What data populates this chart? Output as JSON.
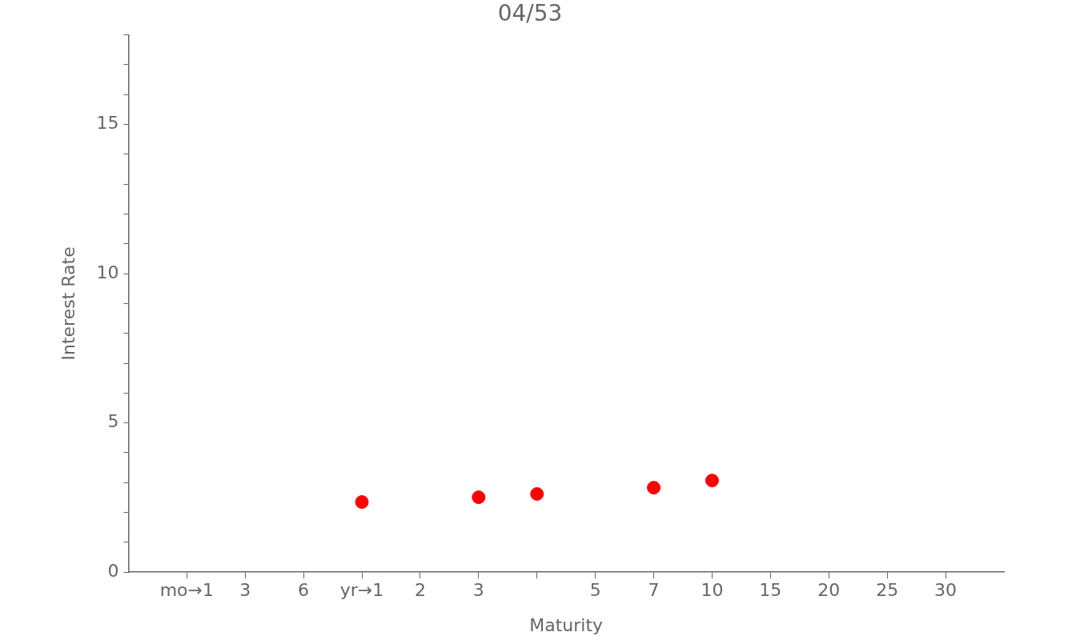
{
  "chart_data": {
    "type": "scatter",
    "title": "04/53",
    "xlabel": "Maturity",
    "ylabel": "Interest Rate",
    "categories": [
      "mo→1",
      "3",
      "6",
      "yr→1",
      "2",
      "3",
      null,
      "5",
      "7",
      "10",
      "15",
      "20",
      "25",
      "30"
    ],
    "series": [
      {
        "color": "#ff0000",
        "values": [
          null,
          null,
          null,
          2.35,
          null,
          2.51,
          2.62,
          null,
          2.83,
          3.07,
          null,
          null,
          null,
          null
        ]
      }
    ],
    "ylim": [
      0,
      18
    ],
    "yticks": [
      0,
      {
        "value": 1,
        "label": null
      },
      {
        "value": 2,
        "label": null
      },
      {
        "value": 3,
        "label": null
      },
      {
        "value": 4,
        "label": null
      },
      5,
      {
        "value": 6,
        "label": null
      },
      {
        "value": 7,
        "label": null
      },
      {
        "value": 8,
        "label": null
      },
      {
        "value": 9,
        "label": null
      },
      10,
      {
        "value": 11,
        "label": null
      },
      {
        "value": 12,
        "label": null
      },
      {
        "value": 13,
        "label": null
      },
      {
        "value": 14,
        "label": null
      },
      15,
      {
        "value": 16,
        "label": null
      },
      {
        "value": 17,
        "label": null
      },
      {
        "value": 18,
        "label": null
      }
    ],
    "marker": "circle",
    "grid": false,
    "legend": false
  }
}
